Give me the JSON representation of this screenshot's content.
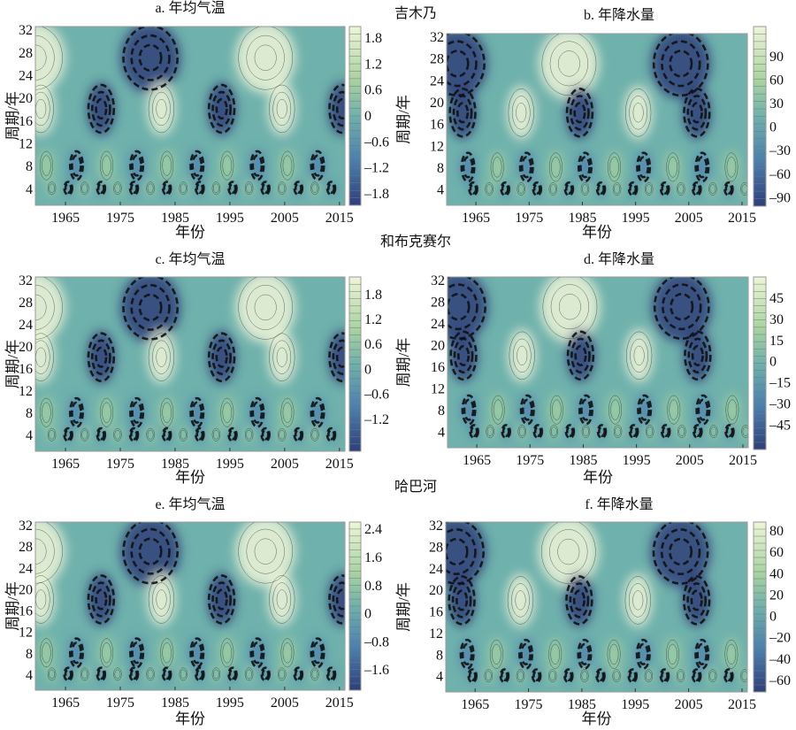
{
  "chart_data": [
    {
      "id": "a",
      "type": "heatmap",
      "subtype": "wavelet-contour",
      "station": "吉木乃",
      "title": "a. 年均气温",
      "xlabel": "年份",
      "ylabel": "周期/年",
      "xticks": [
        "1965",
        "1975",
        "1985",
        "1995",
        "2005",
        "2015"
      ],
      "xlim": [
        1959.5,
        2016
      ],
      "yticks": [
        "4",
        "8",
        "12",
        "16",
        "20",
        "24",
        "28",
        "32"
      ],
      "ylim": [
        1,
        32.5
      ],
      "colorbar_ticks": [
        "1.8",
        "1.2",
        "0.6",
        "0",
        "–0.6",
        "–1.2",
        "–1.8"
      ],
      "colorbar_values": [
        1.8,
        1.2,
        0.6,
        0,
        -0.6,
        -1.2,
        -1.8
      ],
      "colorbar_range": [
        -2.09,
        2.05
      ]
    },
    {
      "id": "b",
      "type": "heatmap",
      "subtype": "wavelet-contour",
      "station": "",
      "title": "b. 年降水量",
      "xlabel": "年份",
      "ylabel": "周期/年",
      "xticks": [
        "1965",
        "1975",
        "1985",
        "1995",
        "2005",
        "2015"
      ],
      "xlim": [
        1959.5,
        2016
      ],
      "yticks": [
        "4",
        "8",
        "12",
        "16",
        "20",
        "24",
        "28",
        "32"
      ],
      "ylim": [
        1,
        32.5
      ],
      "colorbar_ticks": [
        "90",
        "60",
        "30",
        "0",
        "–30",
        "–60",
        "–90"
      ],
      "colorbar_values": [
        90,
        60,
        30,
        0,
        -30,
        -60,
        -90
      ],
      "colorbar_range": [
        -102,
        127
      ]
    },
    {
      "id": "c",
      "type": "heatmap",
      "subtype": "wavelet-contour",
      "station": "和布克赛尔",
      "title": "c. 年均气温",
      "xlabel": "年份",
      "ylabel": "周期/年",
      "xticks": [
        "1965",
        "1975",
        "1985",
        "1995",
        "2005",
        "2015"
      ],
      "xlim": [
        1959.5,
        2016
      ],
      "yticks": [
        "4",
        "8",
        "12",
        "16",
        "20",
        "24",
        "28",
        "32"
      ],
      "ylim": [
        1,
        32.5
      ],
      "colorbar_ticks": [
        "1.8",
        "1.2",
        "0.6",
        "0",
        "–0.6",
        "–1.2"
      ],
      "colorbar_values": [
        1.8,
        1.2,
        0.6,
        0,
        -0.6,
        -1.2
      ],
      "colorbar_range": [
        -1.99,
        2.2
      ]
    },
    {
      "id": "d",
      "type": "heatmap",
      "subtype": "wavelet-contour",
      "station": "",
      "title": "d. 年降水量",
      "xlabel": "年份",
      "ylabel": "周期/年",
      "xticks": [
        "1965",
        "1975",
        "1985",
        "1995",
        "2005",
        "2015"
      ],
      "xlim": [
        1959.5,
        2016
      ],
      "yticks": [
        "4",
        "8",
        "12",
        "16",
        "20",
        "24",
        "28",
        "32"
      ],
      "ylim": [
        1,
        32.5
      ],
      "colorbar_ticks": [
        "45",
        "30",
        "15",
        "0",
        "–15",
        "–30",
        "–45"
      ],
      "colorbar_values": [
        45,
        30,
        15,
        0,
        -15,
        -30,
        -45
      ],
      "colorbar_range": [
        -63,
        59.5
      ]
    },
    {
      "id": "e",
      "type": "heatmap",
      "subtype": "wavelet-contour",
      "station": "哈巴河",
      "title": "e. 年均气温",
      "xlabel": "年份",
      "ylabel": "周期/年",
      "xticks": [
        "1965",
        "1975",
        "1985",
        "1995",
        "2005",
        "2015"
      ],
      "xlim": [
        1959.5,
        2016
      ],
      "yticks": [
        "4",
        "8",
        "12",
        "16",
        "20",
        "24",
        "28",
        "32"
      ],
      "ylim": [
        1,
        32.5
      ],
      "colorbar_ticks": [
        "2.4",
        "1.6",
        "0.8",
        "0",
        "–0.8",
        "–1.6"
      ],
      "colorbar_values": [
        2.4,
        1.6,
        0.8,
        0,
        -0.8,
        -1.6
      ],
      "colorbar_range": [
        -2.2,
        2.58
      ]
    },
    {
      "id": "f",
      "type": "heatmap",
      "subtype": "wavelet-contour",
      "station": "",
      "title": "f. 年降水量",
      "xlabel": "年份",
      "ylabel": "周期/年",
      "xticks": [
        "1965",
        "1975",
        "1985",
        "1995",
        "2005",
        "2015"
      ],
      "xlim": [
        1959.5,
        2016
      ],
      "yticks": [
        "4",
        "8",
        "12",
        "16",
        "20",
        "24",
        "28",
        "32"
      ],
      "ylim": [
        1,
        32.5
      ],
      "colorbar_ticks": [
        "80",
        "60",
        "40",
        "20",
        "0",
        "–20",
        "–40",
        "–60"
      ],
      "colorbar_values": [
        80,
        60,
        40,
        20,
        0,
        -20,
        -40,
        -60
      ],
      "colorbar_range": [
        -71.6,
        87.5
      ]
    }
  ],
  "colors": {
    "positive": "#eef5d8",
    "mid_positive": "#a8d3a0",
    "zero": "#6fb1ac",
    "negative": "#4a7fae",
    "strong_negative": "#2e3f7a",
    "contour": "#111111"
  }
}
